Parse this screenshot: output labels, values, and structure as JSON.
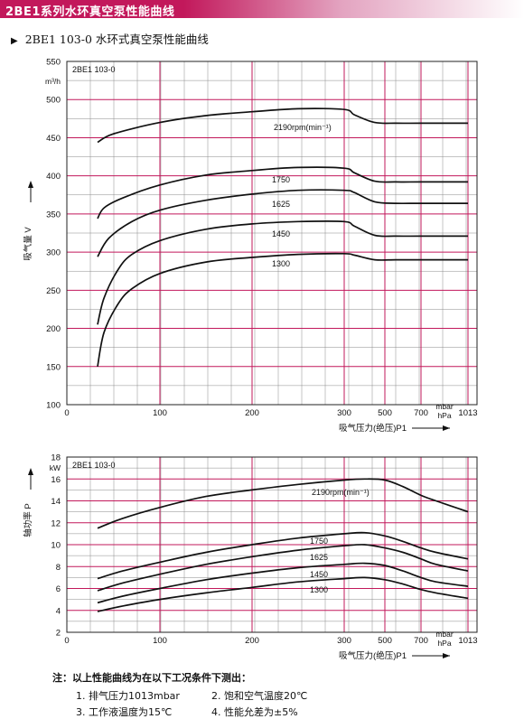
{
  "header": {
    "title": "2BE1系列水环真空泵性能曲线"
  },
  "subtitle": {
    "marker": "▶",
    "text": "2BE1 103-0 水环式真空泵性能曲线"
  },
  "colors": {
    "header": "#c2185b",
    "grid_major": "#c2185b",
    "grid_minor": "#8a8a8a",
    "curve": "#111111"
  },
  "chart_data": [
    {
      "type": "line",
      "model_label": "2BE1 103-0",
      "y_unit": "m³/h",
      "ylabel": "吸气量 V",
      "ylim": [
        100,
        550
      ],
      "yticks": [
        100,
        150,
        200,
        250,
        300,
        350,
        400,
        450,
        500,
        550
      ],
      "x_unit_top": "mbar",
      "x_unit_bottom": "hPa",
      "xlabel": "吸气压力(绝压)P1",
      "xticks": [
        0,
        100,
        200,
        300,
        500,
        700,
        1013
      ],
      "series": [
        {
          "name": "2190rpm(min⁻¹)",
          "points": [
            [
              33,
              444
            ],
            [
              50,
              455
            ],
            [
              100,
              470
            ],
            [
              150,
              479
            ],
            [
              200,
              484
            ],
            [
              250,
              488
            ],
            [
              300,
              487
            ],
            [
              350,
              480
            ],
            [
              450,
              470
            ],
            [
              560,
              469
            ],
            [
              700,
              469
            ],
            [
              1013,
              469
            ]
          ]
        },
        {
          "name": "1750",
          "points": [
            [
              33,
              344
            ],
            [
              40,
              358
            ],
            [
              60,
              371
            ],
            [
              100,
              388
            ],
            [
              150,
              401
            ],
            [
              200,
              407
            ],
            [
              250,
              411
            ],
            [
              300,
              410
            ],
            [
              350,
              404
            ],
            [
              450,
              393
            ],
            [
              560,
              392
            ],
            [
              700,
              392
            ],
            [
              1013,
              392
            ]
          ]
        },
        {
          "name": "1625",
          "points": [
            [
              33,
              294
            ],
            [
              45,
              318
            ],
            [
              70,
              340
            ],
            [
              100,
              355
            ],
            [
              150,
              368
            ],
            [
              200,
              376
            ],
            [
              250,
              381
            ],
            [
              300,
              381
            ],
            [
              350,
              378
            ],
            [
              450,
              366
            ],
            [
              560,
              364
            ],
            [
              700,
              364
            ],
            [
              1013,
              364
            ]
          ]
        },
        {
          "name": "1450",
          "points": [
            [
              33,
              205
            ],
            [
              40,
              240
            ],
            [
              55,
              277
            ],
            [
              70,
              297
            ],
            [
              100,
              315
            ],
            [
              150,
              330
            ],
            [
              200,
              337
            ],
            [
              250,
              340
            ],
            [
              300,
              340
            ],
            [
              350,
              334
            ],
            [
              450,
              322
            ],
            [
              560,
              321
            ],
            [
              700,
              321
            ],
            [
              1013,
              321
            ]
          ]
        },
        {
          "name": "1300",
          "points": [
            [
              33,
              150
            ],
            [
              40,
              195
            ],
            [
              55,
              232
            ],
            [
              70,
              252
            ],
            [
              100,
              272
            ],
            [
              150,
              287
            ],
            [
              200,
              293
            ],
            [
              250,
              297
            ],
            [
              300,
              298
            ],
            [
              350,
              296
            ],
            [
              450,
              290
            ],
            [
              560,
              290
            ],
            [
              700,
              290
            ],
            [
              1013,
              290
            ]
          ]
        }
      ]
    },
    {
      "type": "line",
      "model_label": "2BE1 103-0",
      "y_unit": "kW",
      "ylabel": "轴功率 P",
      "ylim": [
        2,
        18
      ],
      "yticks": [
        2,
        4,
        6,
        8,
        10,
        12,
        14,
        16,
        18
      ],
      "x_unit_top": "mbar",
      "x_unit_bottom": "hPa",
      "xlabel": "吸气压力(绝压)P1",
      "xticks": [
        0,
        100,
        200,
        300,
        500,
        700,
        1013
      ],
      "series": [
        {
          "name": "2190rpm(min⁻¹)",
          "points": [
            [
              33,
              11.5
            ],
            [
              60,
              12.4
            ],
            [
              100,
              13.4
            ],
            [
              150,
              14.4
            ],
            [
              200,
              15.0
            ],
            [
              250,
              15.5
            ],
            [
              300,
              15.9
            ],
            [
              400,
              16.0
            ],
            [
              500,
              15.9
            ],
            [
              600,
              15.3
            ],
            [
              700,
              14.5
            ],
            [
              800,
              14.0
            ],
            [
              1013,
              13.0
            ]
          ]
        },
        {
          "name": "1750",
          "points": [
            [
              33,
              6.9
            ],
            [
              60,
              7.6
            ],
            [
              100,
              8.4
            ],
            [
              150,
              9.3
            ],
            [
              200,
              10.0
            ],
            [
              250,
              10.6
            ],
            [
              300,
              11.0
            ],
            [
              400,
              11.1
            ],
            [
              500,
              10.8
            ],
            [
              600,
              10.3
            ],
            [
              700,
              9.7
            ],
            [
              800,
              9.3
            ],
            [
              1013,
              8.7
            ]
          ]
        },
        {
          "name": "1625",
          "points": [
            [
              33,
              5.8
            ],
            [
              60,
              6.5
            ],
            [
              100,
              7.3
            ],
            [
              150,
              8.2
            ],
            [
              200,
              8.9
            ],
            [
              250,
              9.5
            ],
            [
              300,
              9.9
            ],
            [
              400,
              10.0
            ],
            [
              500,
              9.7
            ],
            [
              600,
              9.3
            ],
            [
              700,
              8.7
            ],
            [
              800,
              8.2
            ],
            [
              1013,
              7.6
            ]
          ]
        },
        {
          "name": "1450",
          "points": [
            [
              33,
              4.7
            ],
            [
              60,
              5.3
            ],
            [
              100,
              6.0
            ],
            [
              150,
              6.8
            ],
            [
              200,
              7.4
            ],
            [
              250,
              7.9
            ],
            [
              300,
              8.2
            ],
            [
              400,
              8.3
            ],
            [
              500,
              8.1
            ],
            [
              600,
              7.6
            ],
            [
              700,
              7.0
            ],
            [
              800,
              6.6
            ],
            [
              1013,
              6.2
            ]
          ]
        },
        {
          "name": "1300",
          "points": [
            [
              33,
              3.9
            ],
            [
              60,
              4.4
            ],
            [
              100,
              5.0
            ],
            [
              150,
              5.6
            ],
            [
              200,
              6.1
            ],
            [
              250,
              6.6
            ],
            [
              300,
              6.9
            ],
            [
              400,
              7.0
            ],
            [
              500,
              6.8
            ],
            [
              600,
              6.4
            ],
            [
              700,
              5.9
            ],
            [
              800,
              5.6
            ],
            [
              1013,
              5.1
            ]
          ]
        }
      ]
    }
  ],
  "notes": {
    "title": "注：以上性能曲线为在以下工况条件下测出：",
    "items": [
      "1. 排气压力1013mbar",
      "2. 饱和空气温度20℃",
      "3. 工作液温度为15℃",
      "4. 性能允差为±5%"
    ]
  }
}
